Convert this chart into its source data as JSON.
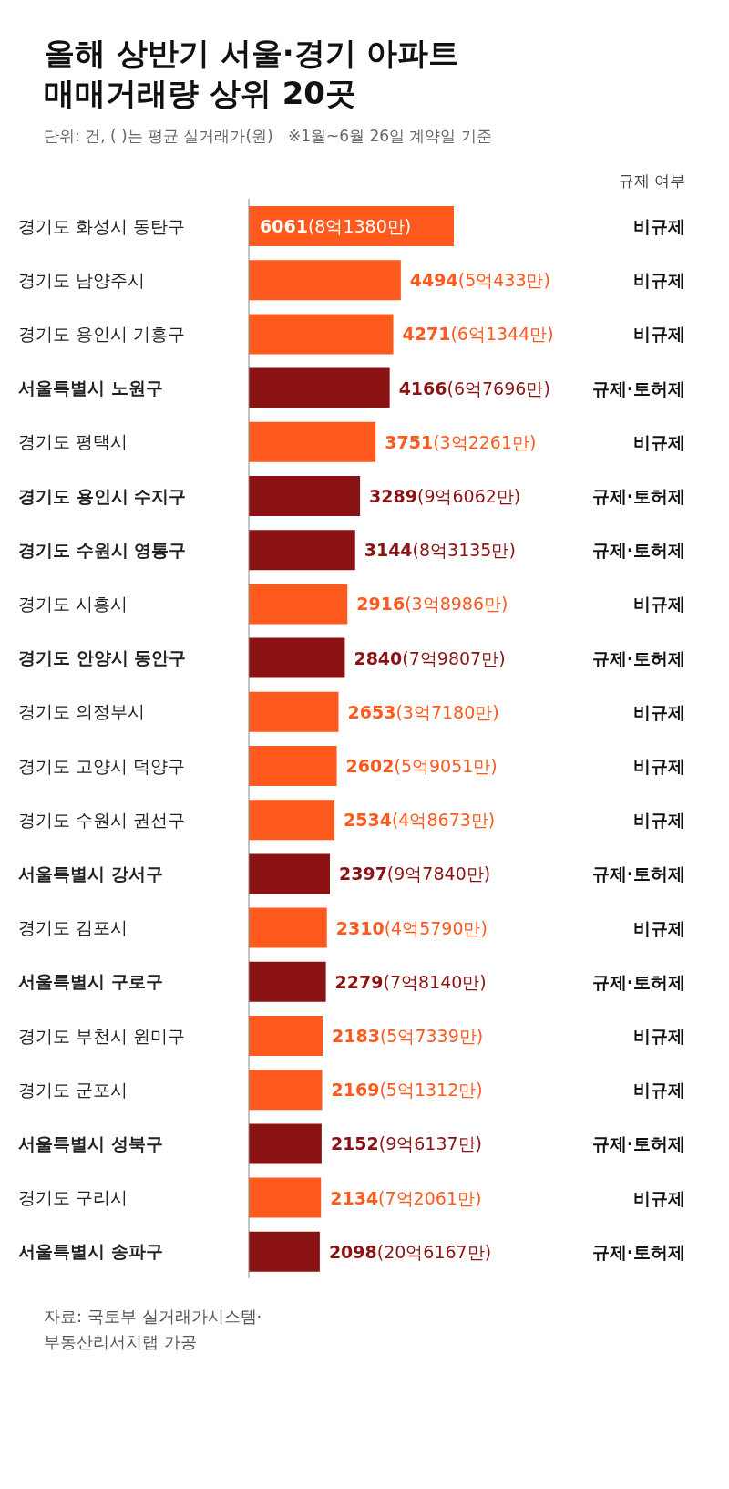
{
  "chart_data": {
    "type": "bar",
    "orientation": "horizontal",
    "title": "올해 상반기 서울·경기 아파트\n매매거래량 상위 20곳",
    "subtitle": "단위: 건, ( )는 평균 실거래가(원)   ※1월~6월 26일 계약일 기준",
    "categories": [
      "경기도 화성시 동탄구",
      "경기도 남양주시",
      "경기도 용인시 기흥구",
      "서울특별시 노원구",
      "경기도 평택시",
      "경기도 용인시 수지구",
      "경기도 수원시 영통구",
      "경기도 시흥시",
      "경기도 안양시 동안구",
      "경기도 의정부시",
      "경기도 고양시 덕양구",
      "경기도 수원시 권선구",
      "서울특별시 강서구",
      "경기도 김포시",
      "서울특별시 구로구",
      "경기도 부천시 원미구",
      "경기도 군포시",
      "서울특별시 성북구",
      "경기도 구리시",
      "서울특별시 송파구"
    ],
    "y2_categories": [
      "비규제",
      "비규제",
      "비규제",
      "규제·토허제",
      "비규제",
      "규제·토허제",
      "규제·토허제",
      "비규제",
      "규제·토허제",
      "비규제",
      "비규제",
      "비규제",
      "규제·토허제",
      "비규제",
      "규제·토허제",
      "비규제",
      "비규제",
      "규제·토허제",
      "비규제",
      "규제·토허제"
    ],
    "values": [
      6061,
      4494,
      4271,
      4166,
      3751,
      3289,
      3144,
      2916,
      2840,
      2653,
      2602,
      2534,
      2397,
      2310,
      2279,
      2183,
      2169,
      2152,
      2134,
      2098
    ],
    "value_labels": [
      "6061(8억1380만)",
      "4494(5억433만)",
      "4271(6억1344만)",
      "4166(6억7696만)",
      "3751(3억2261만)",
      "3289(9억6062만)",
      "3144(8억3135만)",
      "2916(3억8986만)",
      "2840(7억9807만)",
      "2653(3억7180만)",
      "2602(5억9051만)",
      "2534(4억8673만)",
      "2397(9억7840만)",
      "2310(4억5790만)",
      "2279(7억8140만)",
      "2183(5억7339만)",
      "2169(5억1312만)",
      "2152(9억6137만)",
      "2134(7억2061만)",
      "2098(20억6167만)"
    ],
    "colors": [
      "#ff5a1e",
      "#ff5a1e",
      "#ff5a1e",
      "#8b1212",
      "#ff5a1e",
      "#8b1212",
      "#8b1212",
      "#ff5a1e",
      "#8b1212",
      "#ff5a1e",
      "#ff5a1e",
      "#ff5a1e",
      "#8b1212",
      "#ff5a1e",
      "#8b1212",
      "#ff5a1e",
      "#ff5a1e",
      "#8b1212",
      "#ff5a1e",
      "#8b1212"
    ],
    "annotations": [
      "규제 여부",
      "자료: 국토부 실거래가시스템·\n부동산리서치랩 가공"
    ]
  }
}
